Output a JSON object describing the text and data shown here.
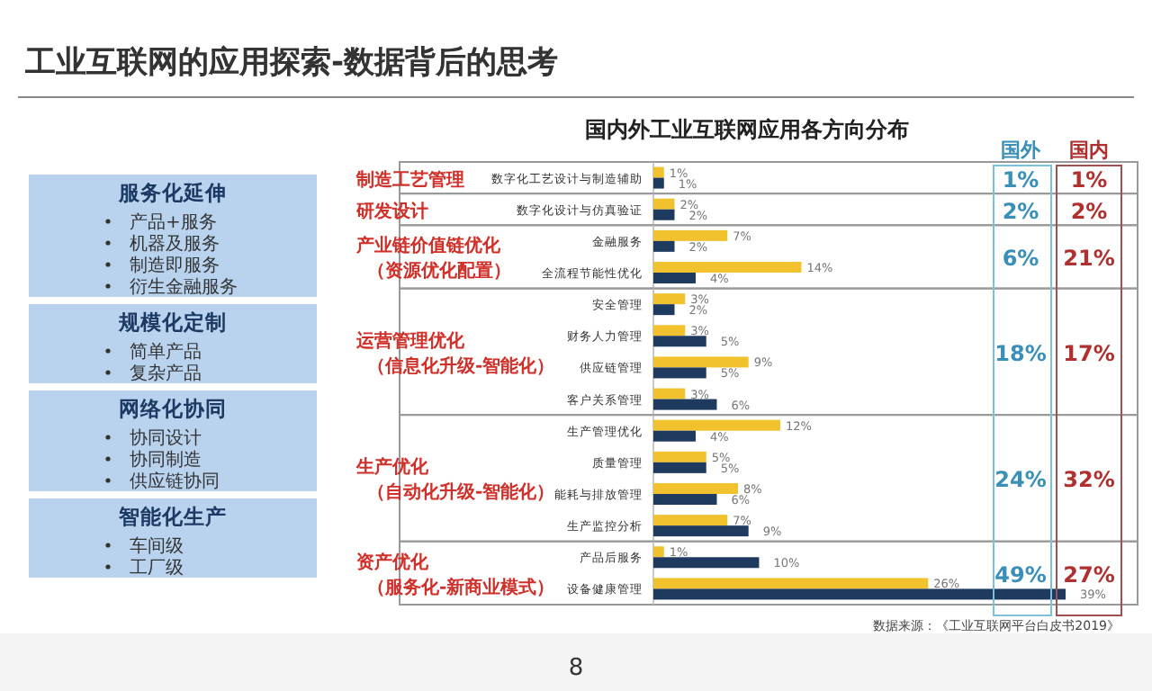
{
  "chart_data": [
    {
      "type": "bar",
      "orientation": "horizontal",
      "title": "工业互联网的应用探索-数据背后的思考",
      "subtitle": "国内外工业互联网应用各方向分布",
      "ylabel": "制造工艺管理",
      "categories": [
        "数字化工艺设计与制造辅助"
      ],
      "series": [
        {
          "color": "#f2c12e",
          "values": [
            1
          ],
          "value_labels": [
            "1%"
          ]
        },
        {
          "color": "#1f3a5f",
          "values": [
            1
          ],
          "value_labels": [
            "1%"
          ]
        }
      ],
      "annotations": [
        "国外",
        "国内",
        "1%",
        "1%"
      ]
    },
    {
      "type": "bar",
      "orientation": "horizontal",
      "ylabel": "研发设计",
      "categories": [
        "数字化设计与仿真验证"
      ],
      "series": [
        {
          "color": "#f2c12e",
          "values": [
            2
          ],
          "value_labels": [
            "2%"
          ]
        },
        {
          "color": "#1f3a5f",
          "values": [
            2
          ],
          "value_labels": [
            "2%"
          ]
        }
      ],
      "annotations": [
        "2%",
        "2%"
      ]
    },
    {
      "type": "bar",
      "orientation": "horizontal",
      "ylabel": "产业链价值链优化（资源优化配置）",
      "categories": [
        "金融服务",
        "全流程节能性优化"
      ],
      "series": [
        {
          "color": "#f2c12e",
          "values": [
            7,
            14
          ],
          "value_labels": [
            "7%",
            "14%"
          ]
        },
        {
          "color": "#1f3a5f",
          "values": [
            2,
            4
          ],
          "value_labels": [
            "2%",
            "4%"
          ]
        }
      ],
      "annotations": [
        "6%",
        "21%"
      ]
    },
    {
      "type": "bar",
      "orientation": "horizontal",
      "ylabel": "运营管理优化（信息化升级-智能化）",
      "categories": [
        "安全管理",
        "财务人力管理",
        "供应链管理",
        "客户关系管理"
      ],
      "series": [
        {
          "color": "#f2c12e",
          "values": [
            3,
            3,
            9,
            3
          ],
          "value_labels": [
            "3%",
            "3%",
            "9%",
            "3%"
          ]
        },
        {
          "color": "#1f3a5f",
          "values": [
            2,
            5,
            5,
            6
          ],
          "value_labels": [
            "2%",
            "5%",
            "5%",
            "6%"
          ]
        }
      ],
      "annotations": [
        "18%",
        "17%"
      ]
    },
    {
      "type": "bar",
      "orientation": "horizontal",
      "ylabel": "生产优化（自动化升级-智能化）",
      "categories": [
        "生产管理优化",
        "质量管理",
        "能耗与排放管理",
        "生产监控分析"
      ],
      "series": [
        {
          "color": "#f2c12e",
          "values": [
            12,
            5,
            8,
            7
          ],
          "value_labels": [
            "12%",
            "5%",
            "8%",
            "7%"
          ]
        },
        {
          "color": "#1f3a5f",
          "values": [
            4,
            5,
            6,
            9
          ],
          "value_labels": [
            "4%",
            "5%",
            "6%",
            "9%"
          ]
        }
      ],
      "annotations": [
        "24%",
        "32%"
      ]
    },
    {
      "type": "bar",
      "orientation": "horizontal",
      "ylabel": "资产优化（服务化-新商业模式）",
      "categories": [
        "产品后服务",
        "设备健康管理"
      ],
      "series": [
        {
          "color": "#f2c12e",
          "values": [
            1,
            26
          ],
          "value_labels": [
            "1%",
            "26%"
          ]
        },
        {
          "color": "#1f3a5f",
          "values": [
            10,
            39
          ],
          "value_labels": [
            "10%",
            "39%"
          ]
        }
      ],
      "annotations": [
        "49%",
        "27%",
        "数据来源：《工业互联网平台白皮书2019》",
        "8"
      ]
    },
    {
      "type": "other",
      "title": "服务化延伸",
      "annotations": [
        "产品+服务",
        "机器及服务",
        "制造即服务",
        "衍生金融服务"
      ]
    },
    {
      "type": "other",
      "title": "规模化定制",
      "annotations": [
        "简单产品",
        "复杂产品"
      ]
    },
    {
      "type": "other",
      "title": "网络化协同",
      "annotations": [
        "协同设计",
        "协同制造",
        "供应链协同"
      ]
    },
    {
      "type": "other",
      "title": "智能化生产",
      "annotations": [
        "车间级",
        "工厂级"
      ]
    }
  ]
}
